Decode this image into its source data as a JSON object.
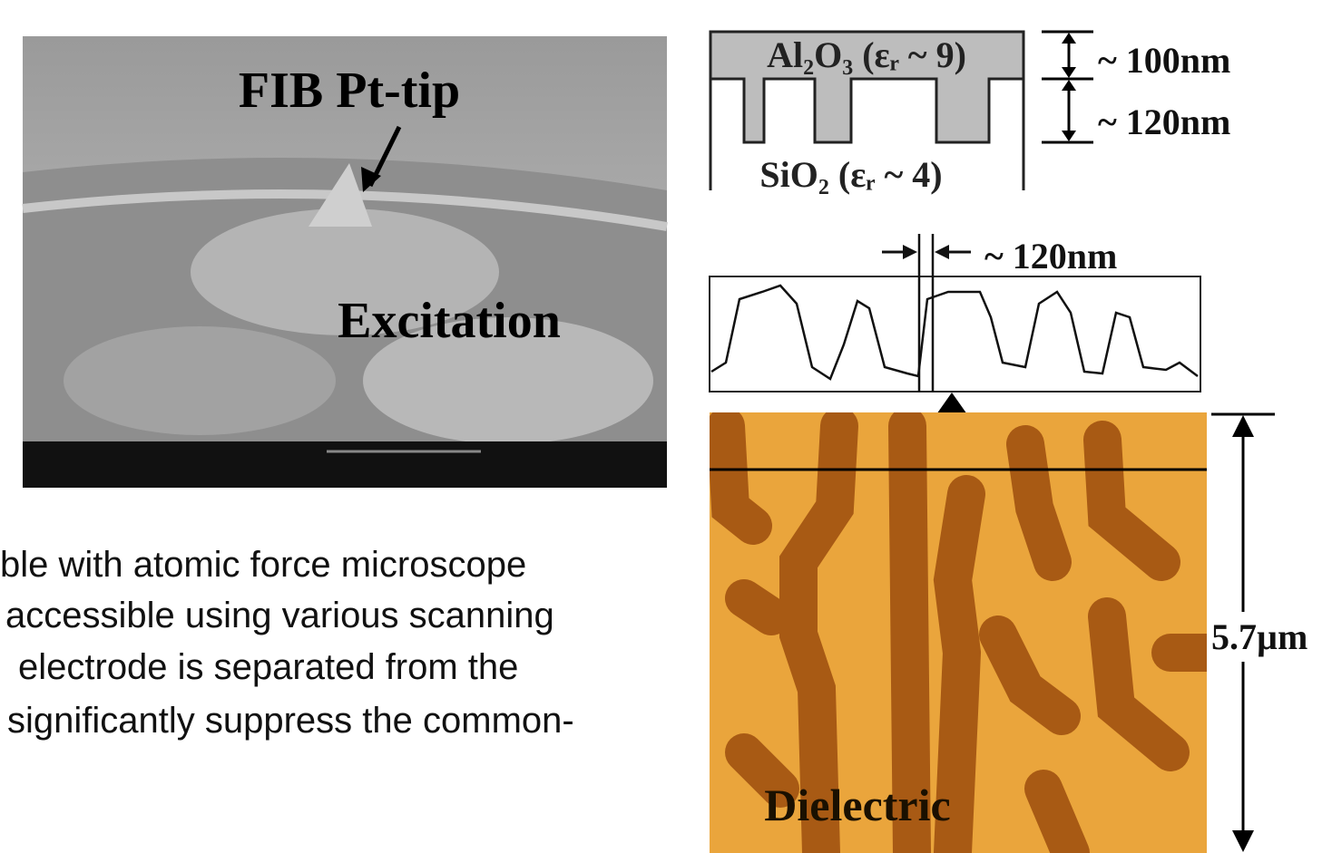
{
  "sem": {
    "tip_label": "FIB Pt-tip",
    "excitation_label": "Excitation"
  },
  "text": {
    "lines": [
      "ble with atomic force microscope",
      "accessible using various scanning",
      "electrode is separated from the",
      "significantly suppress the common-"
    ]
  },
  "stack": {
    "top_layer": "Al₂O₃ (εᵣ ~ 9)",
    "bottom_layer": "SiO₂ (εᵣ ~ 4)",
    "top_thickness": "~ 100nm",
    "trench_depth": "~ 120nm"
  },
  "profile": {
    "width_label": "~ 120nm"
  },
  "afm": {
    "size_label": "5.7µm",
    "region_label": "Dielectric"
  }
}
